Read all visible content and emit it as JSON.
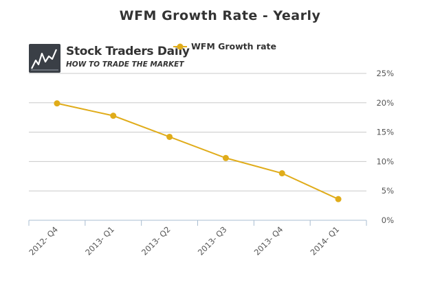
{
  "title": "WFM Growth Rate - Yearly",
  "logo": {
    "name": "Stock Traders Daily",
    "tagline": "HOW TO TRADE THE MARKET"
  },
  "colors": {
    "series": "#e0ac1a",
    "grid": "#c8c8c8",
    "axis": "#a8bcd0",
    "logo_bg": "#3a3f46"
  },
  "chart_data": {
    "type": "line",
    "categories": [
      "2012- Q4",
      "2013- Q1",
      "2013- Q2",
      "2013- Q3",
      "2013- Q4",
      "2014- Q1"
    ],
    "series": [
      {
        "name": "WFM Growth rate",
        "values": [
          0.199,
          0.178,
          0.142,
          0.106,
          0.08,
          0.036
        ]
      }
    ],
    "ylim": [
      0,
      0.25
    ],
    "yticks": [
      "0%",
      "5%",
      "10%",
      "15%",
      "20%",
      "25%"
    ],
    "y_axis_side": "right",
    "grid": true,
    "legend": "top"
  }
}
